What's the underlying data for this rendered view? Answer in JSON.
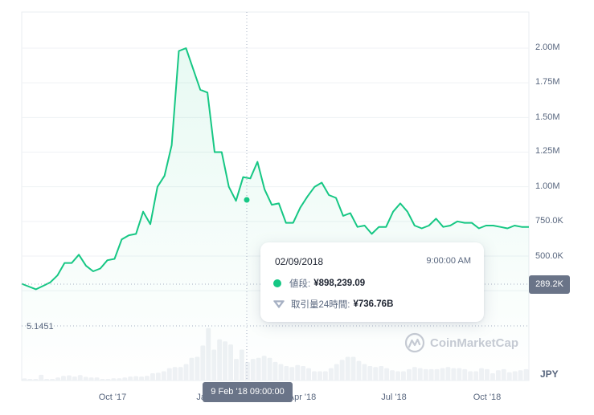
{
  "chart_data": {
    "type": "line",
    "title": "",
    "currency": "JPY",
    "xlabel": "",
    "ylabel": "",
    "ylim": [
      0,
      2000000
    ],
    "grid": true,
    "y_ticks": [
      "2.00M",
      "1.75M",
      "1.50M",
      "1.25M",
      "1.00M",
      "750.0K",
      "500.0K"
    ],
    "x_ticks": [
      "Oct '17",
      "Jan '18",
      "Apr '18",
      "Jul '18",
      "Oct '18"
    ],
    "price_series": {
      "name": "値段",
      "color": "#16c784",
      "x": [
        "2017-07-25",
        "2017-08-01",
        "2017-08-08",
        "2017-08-15",
        "2017-08-22",
        "2017-08-29",
        "2017-09-05",
        "2017-09-12",
        "2017-09-19",
        "2017-09-26",
        "2017-10-03",
        "2017-10-10",
        "2017-10-17",
        "2017-10-24",
        "2017-10-31",
        "2017-11-07",
        "2017-11-14",
        "2017-11-21",
        "2017-11-28",
        "2017-12-05",
        "2017-12-12",
        "2017-12-19",
        "2017-12-26",
        "2018-01-02",
        "2018-01-09",
        "2018-01-16",
        "2018-01-23",
        "2018-01-30",
        "2018-02-02",
        "2018-02-06",
        "2018-02-09",
        "2018-02-14",
        "2018-02-18",
        "2018-02-23",
        "2018-03-02",
        "2018-03-07",
        "2018-03-12",
        "2018-03-17",
        "2018-03-24",
        "2018-03-31",
        "2018-04-07",
        "2018-04-14",
        "2018-04-21",
        "2018-04-28",
        "2018-05-05",
        "2018-05-12",
        "2018-05-19",
        "2018-05-26",
        "2018-06-02",
        "2018-06-09",
        "2018-06-16",
        "2018-06-23",
        "2018-06-30",
        "2018-07-07",
        "2018-07-14",
        "2018-07-21",
        "2018-07-28",
        "2018-08-04",
        "2018-08-11",
        "2018-08-18",
        "2018-08-25",
        "2018-09-01",
        "2018-09-08",
        "2018-09-15",
        "2018-09-22",
        "2018-09-29",
        "2018-10-06",
        "2018-10-13",
        "2018-10-20",
        "2018-10-27",
        "2018-11-03",
        "2018-11-10"
      ],
      "values": [
        300000,
        280000,
        260000,
        285000,
        310000,
        360000,
        450000,
        450000,
        510000,
        430000,
        390000,
        410000,
        470000,
        480000,
        620000,
        650000,
        660000,
        820000,
        730000,
        1000000,
        1080000,
        1300000,
        1980000,
        2000000,
        1850000,
        1700000,
        1680000,
        1250000,
        1250000,
        1000000,
        898239,
        1070000,
        1060000,
        1180000,
        980000,
        870000,
        880000,
        740000,
        740000,
        850000,
        930000,
        1000000,
        1030000,
        940000,
        920000,
        790000,
        810000,
        710000,
        720000,
        660000,
        710000,
        710000,
        820000,
        880000,
        820000,
        720000,
        700000,
        720000,
        770000,
        710000,
        720000,
        750000,
        740000,
        740000,
        700000,
        720000,
        720000,
        710000,
        700000,
        720000,
        710000,
        710000
      ]
    },
    "volume_series": {
      "name": "取引量24時間",
      "color": "#eff2f5",
      "max_label": "5.1451",
      "values": [
        0.2,
        0.15,
        0.05,
        0.55,
        0.12,
        0.1,
        0.3,
        0.45,
        0.5,
        0.38,
        0.52,
        0.35,
        0.3,
        0.3,
        0.1,
        0.15,
        0.22,
        0.22,
        0.3,
        0.38,
        0.42,
        0.38,
        0.45,
        0.7,
        0.75,
        0.9,
        1.2,
        1.3,
        1.3,
        1.6,
        2.2,
        2.3,
        3.4,
        5.1,
        3.0,
        4.0,
        3.8,
        3.5,
        2.1,
        3.0,
        1.8,
        2.1,
        2.2,
        2.4,
        2.2,
        1.8,
        1.6,
        1.4,
        1.3,
        1.5,
        1.4,
        1.2,
        0.9,
        0.9,
        0.9,
        1.2,
        1.6,
        2.0,
        2.3,
        2.3,
        1.9,
        1.6,
        1.4,
        1.3,
        1.4,
        1.2,
        1.0,
        0.9,
        0.9,
        1.1,
        1.3,
        1.2,
        1.1,
        1.1,
        1.1,
        1.2,
        1.3,
        1.2,
        1.2,
        1.1,
        0.9,
        0.9,
        1.2,
        1.1,
        0.7,
        1.0,
        1.1,
        0.8,
        0.9,
        1.0,
        1.1
      ]
    },
    "crosshair": {
      "price_label": "289.2K",
      "time_label": "9 Feb '18 09:00:00",
      "volume_label": "5.1451"
    },
    "legend_position": "tooltip"
  },
  "tooltip": {
    "date": "02/09/2018",
    "time": "9:00:00 AM",
    "price_label": "値段:",
    "price_value": "¥898,239.09",
    "volume_label": "取引量24時間:",
    "volume_value": "¥736.76B"
  },
  "watermark": "CoinMarketCap",
  "currency_label": "JPY",
  "colors": {
    "line": "#16c784",
    "axis_text": "#58667e",
    "tag_bg": "#6a7488",
    "grid": "#eff2f5"
  }
}
